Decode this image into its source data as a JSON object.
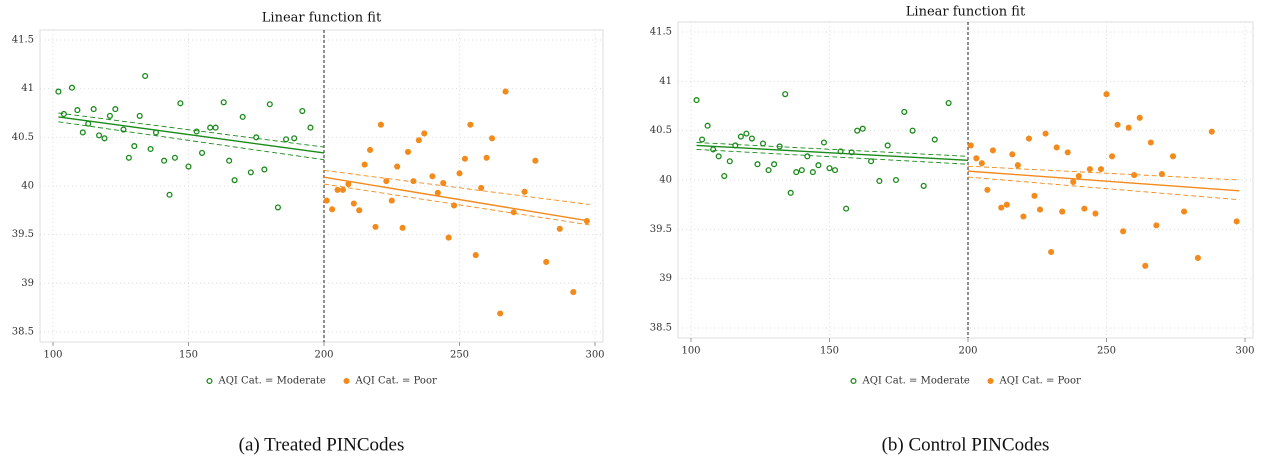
{
  "chart_data": [
    {
      "type": "scatter",
      "title": "Linear function fit",
      "caption": "(a) Treated PINCodes",
      "xlim": [
        100,
        300
      ],
      "xticks": [
        100,
        150,
        200,
        250,
        300
      ],
      "ylim": [
        38.5,
        41.5
      ],
      "yticks": [
        38.5,
        39,
        39.5,
        40,
        40.5,
        41,
        41.5
      ],
      "grid": true,
      "cutoff_x": 200,
      "legend": "bottom",
      "series": [
        {
          "name": "AQI Cat. = Moderate",
          "color": "#1a8a1a",
          "marker": "hollow",
          "x": [
            102,
            104,
            107,
            109,
            111,
            113,
            115,
            117,
            119,
            121,
            123,
            126,
            128,
            130,
            132,
            134,
            136,
            138,
            141,
            143,
            145,
            147,
            150,
            153,
            155,
            158,
            160,
            163,
            165,
            167,
            170,
            173,
            175,
            178,
            180,
            183,
            186,
            189,
            192,
            195
          ],
          "values": [
            40.97,
            40.74,
            41.01,
            40.78,
            40.55,
            40.64,
            40.79,
            40.52,
            40.49,
            40.72,
            40.79,
            40.58,
            40.29,
            40.41,
            40.72,
            41.13,
            40.38,
            40.55,
            40.26,
            39.91,
            40.29,
            40.85,
            40.2,
            40.56,
            40.34,
            40.6,
            40.6,
            40.86,
            40.26,
            40.06,
            40.71,
            40.14,
            40.5,
            40.17,
            40.84,
            39.78,
            40.48,
            40.49,
            40.77,
            40.6
          ],
          "fit": {
            "x": [
              102,
              200
            ],
            "values": [
              40.71,
              40.34
            ]
          },
          "ci_upper": {
            "x": [
              102,
              200
            ],
            "values": [
              40.75,
              40.4
            ]
          },
          "ci_lower": {
            "x": [
              102,
              200
            ],
            "values": [
              40.66,
              40.27
            ]
          }
        },
        {
          "name": "AQI Cat. = Poor",
          "color": "#f28a1c",
          "marker": "filled",
          "x": [
            201,
            203,
            205,
            207,
            209,
            211,
            213,
            215,
            217,
            219,
            221,
            223,
            225,
            227,
            229,
            231,
            233,
            235,
            237,
            240,
            242,
            244,
            246,
            248,
            250,
            252,
            254,
            256,
            258,
            260,
            262,
            265,
            267,
            270,
            274,
            278,
            282,
            287,
            292,
            297
          ],
          "values": [
            39.85,
            39.76,
            39.96,
            39.96,
            40.02,
            39.82,
            39.75,
            40.22,
            40.37,
            39.58,
            40.63,
            40.05,
            39.85,
            40.2,
            39.57,
            40.35,
            40.05,
            40.47,
            40.54,
            40.1,
            39.93,
            40.03,
            39.47,
            39.8,
            40.13,
            40.28,
            40.63,
            39.29,
            39.98,
            40.29,
            40.49,
            38.69,
            40.97,
            39.73,
            39.94,
            40.26,
            39.22,
            39.56,
            38.91,
            39.64
          ],
          "fit": {
            "x": [
              200,
              298
            ],
            "values": [
              40.09,
              39.64
            ]
          },
          "ci_upper": {
            "x": [
              200,
              298
            ],
            "values": [
              40.16,
              39.81
            ]
          },
          "ci_lower": {
            "x": [
              200,
              298
            ],
            "values": [
              40.02,
              39.6
            ]
          }
        }
      ]
    },
    {
      "type": "scatter",
      "title": "Linear function fit",
      "caption": "(b) Control PINCodes",
      "xlim": [
        100,
        300
      ],
      "xticks": [
        100,
        150,
        200,
        250,
        300
      ],
      "ylim": [
        38.5,
        41.5
      ],
      "yticks": [
        38.5,
        39,
        39.5,
        40,
        40.5,
        41,
        41.5
      ],
      "grid": true,
      "cutoff_x": 200,
      "legend": "bottom",
      "series": [
        {
          "name": "AQI Cat. = Moderate",
          "color": "#1a8a1a",
          "marker": "hollow",
          "x": [
            102,
            104,
            106,
            108,
            110,
            112,
            114,
            116,
            118,
            120,
            122,
            124,
            126,
            128,
            130,
            132,
            134,
            136,
            138,
            140,
            142,
            144,
            146,
            148,
            150,
            152,
            154,
            156,
            158,
            160,
            162,
            165,
            168,
            171,
            174,
            177,
            180,
            184,
            188,
            193
          ],
          "values": [
            40.81,
            40.41,
            40.55,
            40.31,
            40.24,
            40.04,
            40.19,
            40.35,
            40.44,
            40.47,
            40.42,
            40.16,
            40.37,
            40.1,
            40.16,
            40.34,
            40.87,
            39.87,
            40.08,
            40.1,
            40.24,
            40.08,
            40.15,
            40.38,
            40.12,
            40.1,
            40.29,
            39.71,
            40.28,
            40.5,
            40.52,
            40.19,
            39.99,
            40.35,
            40.0,
            40.69,
            40.5,
            39.94,
            40.41,
            40.78
          ],
          "fit": {
            "x": [
              102,
              200
            ],
            "values": [
              40.35,
              40.2
            ]
          },
          "ci_upper": {
            "x": [
              102,
              200
            ],
            "values": [
              40.38,
              40.24
            ]
          },
          "ci_lower": {
            "x": [
              102,
              200
            ],
            "values": [
              40.31,
              40.16
            ]
          }
        },
        {
          "name": "AQI Cat. = Poor",
          "color": "#f28a1c",
          "marker": "filled",
          "x": [
            201,
            203,
            205,
            207,
            209,
            212,
            214,
            216,
            218,
            220,
            222,
            224,
            226,
            228,
            230,
            232,
            234,
            236,
            238,
            240,
            242,
            244,
            246,
            248,
            250,
            252,
            254,
            256,
            258,
            260,
            262,
            264,
            266,
            268,
            270,
            274,
            278,
            283,
            288,
            297
          ],
          "values": [
            40.35,
            40.22,
            40.17,
            39.9,
            40.3,
            39.72,
            39.75,
            40.26,
            40.15,
            39.63,
            40.42,
            39.84,
            39.7,
            40.47,
            39.27,
            40.33,
            39.68,
            40.28,
            39.98,
            40.04,
            39.71,
            40.11,
            39.66,
            40.11,
            40.87,
            40.24,
            40.56,
            39.48,
            40.53,
            40.05,
            40.63,
            39.13,
            40.38,
            39.54,
            40.06,
            40.24,
            39.68,
            39.21,
            40.49,
            39.58
          ],
          "fit": {
            "x": [
              200,
              298
            ],
            "values": [
              40.09,
              39.89
            ]
          },
          "ci_upper": {
            "x": [
              200,
              298
            ],
            "values": [
              40.14,
              40.0
            ]
          },
          "ci_lower": {
            "x": [
              200,
              298
            ],
            "values": [
              40.03,
              39.8
            ]
          }
        }
      ]
    }
  ]
}
